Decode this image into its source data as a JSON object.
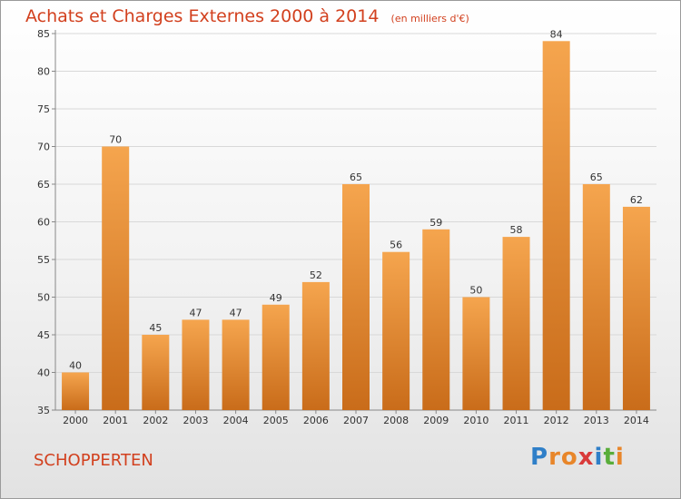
{
  "title": "Achats et Charges Externes 2000 à 2014",
  "subtitle": "(en milliers d'€)",
  "commune": "SCHOPPERTEN",
  "logo": {
    "letters": [
      "P",
      "r",
      "o",
      "x",
      "i",
      "t",
      "i"
    ],
    "colors": [
      "#2f7fc8",
      "#e8862a",
      "#e8862a",
      "#d93a3a",
      "#2f7fc8",
      "#59ad3a",
      "#e8862a"
    ]
  },
  "colors": {
    "bar_top": "#f5a54e",
    "bar_bottom": "#c96c1a",
    "title": "#d2401e"
  },
  "chart_data": {
    "type": "bar",
    "title": "Achats et Charges Externes 2000 à 2014",
    "xlabel": "",
    "ylabel": "",
    "ylim": [
      35,
      85
    ],
    "yticks": [
      35,
      40,
      45,
      50,
      55,
      60,
      65,
      70,
      75,
      80,
      85
    ],
    "grid": true,
    "categories": [
      "2000",
      "2001",
      "2002",
      "2003",
      "2004",
      "2005",
      "2006",
      "2007",
      "2008",
      "2009",
      "2010",
      "2011",
      "2012",
      "2013",
      "2014"
    ],
    "values": [
      40,
      70,
      45,
      47,
      47,
      49,
      52,
      65,
      56,
      59,
      50,
      58,
      84,
      65,
      62
    ]
  }
}
